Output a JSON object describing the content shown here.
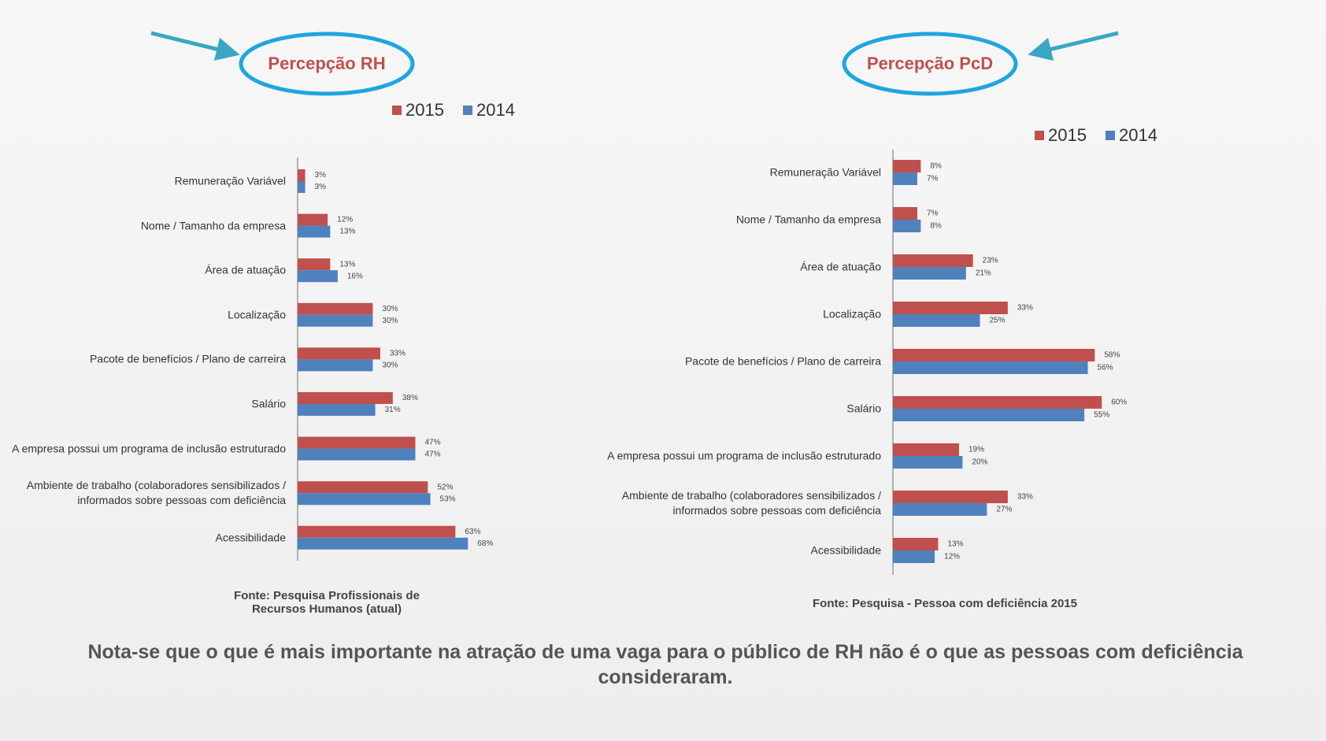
{
  "chart_data": [
    {
      "type": "barh",
      "title": "Percepção RH",
      "categories": [
        "Remuneração Variável",
        "Nome / Tamanho da empresa",
        "Área de atuação",
        "Localização",
        "Pacote de benefícios / Plano de carreira",
        "Salário",
        "A empresa possui um programa de inclusão estruturado",
        "Ambiente de trabalho (colaboradores sensibilizados / informados sobre pessoas com deficiência",
        "Acessibilidade"
      ],
      "series": [
        {
          "name": "2015",
          "color": "#c0504d",
          "values": [
            3,
            12,
            13,
            30,
            33,
            38,
            47,
            52,
            63
          ],
          "value_labels": [
            "3%",
            "12%",
            "13%",
            "30%",
            "33%",
            "38%",
            "47%",
            "52%",
            "63%"
          ]
        },
        {
          "name": "2014",
          "color": "#4f81bd",
          "values": [
            3,
            13,
            16,
            30,
            30,
            31,
            47,
            53,
            68
          ],
          "value_labels": [
            "3%",
            "13%",
            "16%",
            "30%",
            "30%",
            "31%",
            "47%",
            "53%",
            "68%"
          ]
        }
      ],
      "xlim": [
        0,
        100
      ],
      "source": "Fonte: Pesquisa Profissionais de Recursos Humanos (atual)"
    },
    {
      "type": "barh",
      "title": "Percepção PcD",
      "categories": [
        "Remuneração Variável",
        "Nome / Tamanho da empresa",
        "Área de atuação",
        "Localização",
        "Pacote de benefícios / Plano de carreira",
        "Salário",
        "A empresa possui um programa de inclusão estruturado",
        "Ambiente de trabalho (colaboradores sensibilizados / informados sobre pessoas com deficiência",
        "Acessibilidade"
      ],
      "series": [
        {
          "name": "2015",
          "color": "#c0504d",
          "values": [
            8,
            7,
            23,
            33,
            58,
            60,
            19,
            33,
            13
          ],
          "value_labels": [
            "8%",
            "7%",
            "23%",
            "33%",
            "58%",
            "60%",
            "19%",
            "33%",
            "13%"
          ]
        },
        {
          "name": "2014",
          "color": "#4f81bd",
          "values": [
            7,
            8,
            21,
            25,
            56,
            55,
            20,
            27,
            12
          ],
          "value_labels": [
            "7%",
            "8%",
            "21%",
            "25%",
            "56%",
            "55%",
            "20%",
            "27%",
            "12%"
          ]
        }
      ],
      "xlim": [
        0,
        100
      ],
      "source": "Fonte: Pesquisa - Pessoa com deficiência 2015"
    }
  ],
  "note": "Nota-se que o que é mais importante na atração de uma vaga para o público de RH não é o que as pessoas com deficiência consideraram."
}
